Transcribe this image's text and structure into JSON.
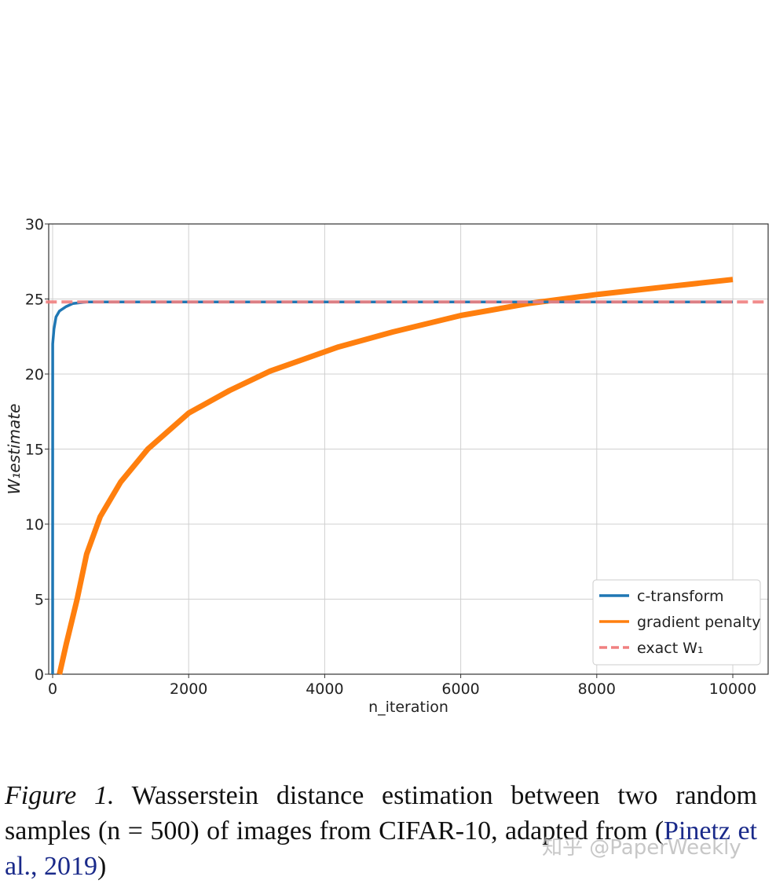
{
  "chart_data": {
    "type": "line",
    "title": "",
    "xlabel": "n_iteration",
    "ylabel": "W_1 estimate",
    "xlim": [
      -100,
      10500
    ],
    "ylim": [
      0,
      30
    ],
    "xticks": [
      0,
      2000,
      4000,
      6000,
      8000,
      10000
    ],
    "yticks": [
      0,
      5,
      10,
      15,
      20,
      25,
      30
    ],
    "grid": true,
    "legend_position": "lower-right",
    "series": [
      {
        "name": "c-transform",
        "color": "#1f77b4",
        "style": "solid",
        "x": [
          0,
          1,
          5,
          20,
          50,
          100,
          200,
          300,
          500,
          1000,
          10000
        ],
        "y": [
          0,
          22,
          22.2,
          23,
          23.8,
          24.2,
          24.5,
          24.7,
          24.8,
          24.8,
          24.8
        ]
      },
      {
        "name": "gradient penalty",
        "color": "#ff7f0e",
        "style": "solid",
        "x": [
          100,
          200,
          360,
          500,
          700,
          1000,
          1400,
          2000,
          2600,
          3200,
          4200,
          5000,
          6000,
          7000,
          7500,
          8000,
          9000,
          10000
        ],
        "y": [
          0,
          2,
          5,
          8,
          10.5,
          12.8,
          15,
          17.4,
          18.9,
          20.2,
          21.8,
          22.8,
          23.9,
          24.7,
          25,
          25.3,
          25.8,
          26.3
        ]
      },
      {
        "name": "exact W_1",
        "color": "#f08080",
        "style": "dashed",
        "x": [
          -100,
          10500
        ],
        "y": [
          24.8,
          24.8
        ]
      }
    ],
    "legend": [
      "c-transform",
      "gradient penalty",
      "exact W1"
    ]
  },
  "caption": {
    "label": "Figure 1.",
    "text": " Wasserstein distance estimation between two random samples (n = 500) of images from CIFAR-10, adapted from (",
    "cite": "Pinetz et al., 2019",
    "end": ")"
  },
  "watermark": "知乎 @PaperWeekly"
}
